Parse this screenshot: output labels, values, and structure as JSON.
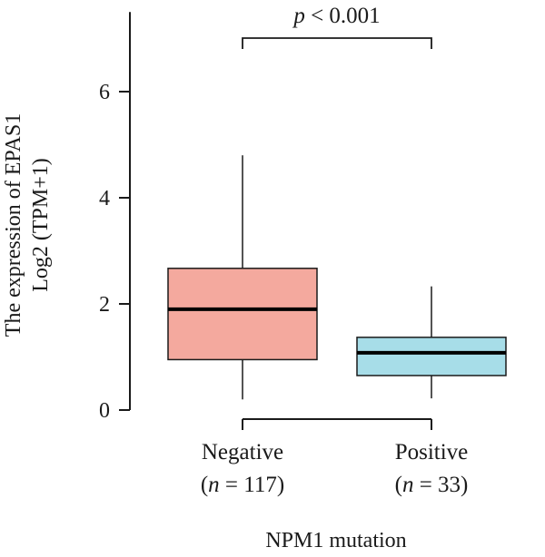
{
  "chart_data": {
    "type": "box",
    "ylabel_line1": "The expression of EPAS1",
    "ylabel_line2": "Log2 (TPM+1)",
    "xlabel": "NPM1 mutation",
    "ylim": [
      0,
      7.5
    ],
    "yticks": [
      0,
      2,
      4,
      6
    ],
    "grid": false,
    "groups": [
      {
        "label": "Negative",
        "n_label": "n",
        "n_text": " = 117)",
        "color": "#f4a99e",
        "whisker_low": 0.2,
        "q1": 0.95,
        "median": 1.9,
        "q3": 2.67,
        "whisker_high": 4.8
      },
      {
        "label": "Positive",
        "n_label": "n",
        "n_text": " = 33)",
        "color": "#a7dde8",
        "whisker_low": 0.22,
        "q1": 0.65,
        "median": 1.08,
        "q3": 1.37,
        "whisker_high": 2.33
      }
    ],
    "significance": {
      "p_symbol": "p",
      "p_text": " < 0.001",
      "between": [
        0,
        1
      ],
      "y": 7.0
    }
  }
}
